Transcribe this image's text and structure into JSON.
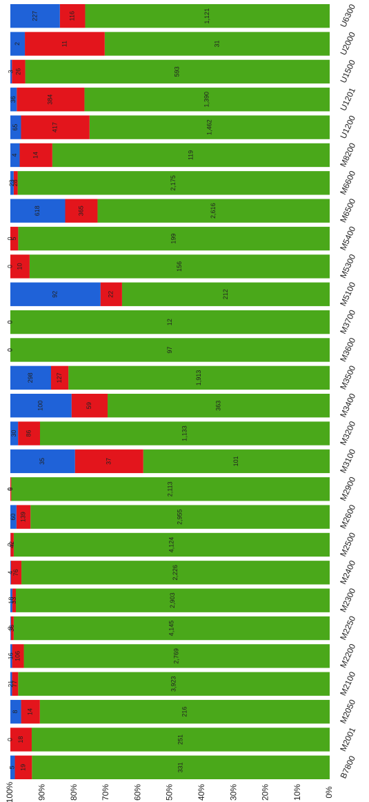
{
  "chart_data": {
    "type": "stacked_bar_percent",
    "categories": [
      "B7800",
      "M2001",
      "M2050",
      "M2100",
      "M2200",
      "M2250",
      "M2300",
      "M2400",
      "M2500",
      "M2600",
      "M2900",
      "M3100",
      "M3200",
      "M3400",
      "M3500",
      "M3600",
      "M3700",
      "M5100",
      "M5300",
      "M5400",
      "M6500",
      "M6600",
      "M8200",
      "U1200",
      "U1201",
      "U1500",
      "U2000",
      "U6300"
    ],
    "series": [
      {
        "color": "#4aa81a",
        "values": [
          331,
          251,
          216,
          3923,
          2769,
          4145,
          2903,
          2226,
          4124,
          2955,
          2113,
          101,
          1133,
          363,
          1913,
          97,
          12,
          212,
          156,
          199,
          2616,
          2175,
          119,
          1462,
          1390,
          593,
          31,
          1121
        ],
        "value_labels": [
          "331",
          "251",
          "216",
          "3,923",
          "2,769",
          "4,145",
          "2,903",
          "2,226",
          "4,124",
          "2,955",
          "2,113",
          "101",
          "1,133",
          "363",
          "1,913",
          "97",
          "12",
          "212",
          "156",
          "199",
          "2,616",
          "2,175",
          "119",
          "1,462",
          "1,390",
          "593",
          "31",
          "1,121"
        ]
      },
      {
        "color": "#e3151c",
        "values": [
          19,
          18,
          14,
          77,
          106,
          36,
          33,
          76,
          42,
          139,
          6,
          37,
          86,
          59,
          127,
          0,
          0,
          22,
          10,
          5,
          365,
          28,
          14,
          417,
          384,
          26,
          11,
          116
        ],
        "value_labels": [
          "19",
          "18",
          "14",
          "77",
          "106",
          "36",
          "33",
          "76",
          "42",
          "139",
          "6",
          "37",
          "86",
          "59",
          "127",
          "0",
          "0",
          "22",
          "10",
          "5",
          "365",
          "28",
          "14",
          "417",
          "384",
          "26",
          "11",
          "116"
        ]
      },
      {
        "color": "#1f62d8",
        "values": [
          5,
          0,
          8,
          21,
          16,
          8,
          18,
          4,
          2,
          60,
          0,
          35,
          30,
          100,
          298,
          0,
          0,
          92,
          0,
          0,
          618,
          23,
          4,
          65,
          36,
          3,
          2,
          227
        ],
        "value_labels": [
          "5",
          "0",
          "8",
          "21",
          "16",
          "8",
          "18",
          "4",
          "2",
          "60",
          "0",
          "35",
          "30",
          "100",
          "298",
          "0",
          "0",
          "92",
          "0",
          "0",
          "618",
          "23",
          "4",
          "65",
          "36",
          "3",
          "2",
          "227"
        ]
      }
    ],
    "ylim": [
      0,
      100
    ],
    "yticks": [
      {
        "value": 0,
        "label": "0%"
      },
      {
        "value": 10,
        "label": "10%"
      },
      {
        "value": 20,
        "label": "20%"
      },
      {
        "value": 30,
        "label": "30%"
      },
      {
        "value": 40,
        "label": "40%"
      },
      {
        "value": 50,
        "label": "50%"
      },
      {
        "value": 60,
        "label": "60%"
      },
      {
        "value": 70,
        "label": "70%"
      },
      {
        "value": 80,
        "label": "80%"
      },
      {
        "value": 90,
        "label": "90%"
      },
      {
        "value": 100,
        "label": "100%"
      }
    ]
  }
}
